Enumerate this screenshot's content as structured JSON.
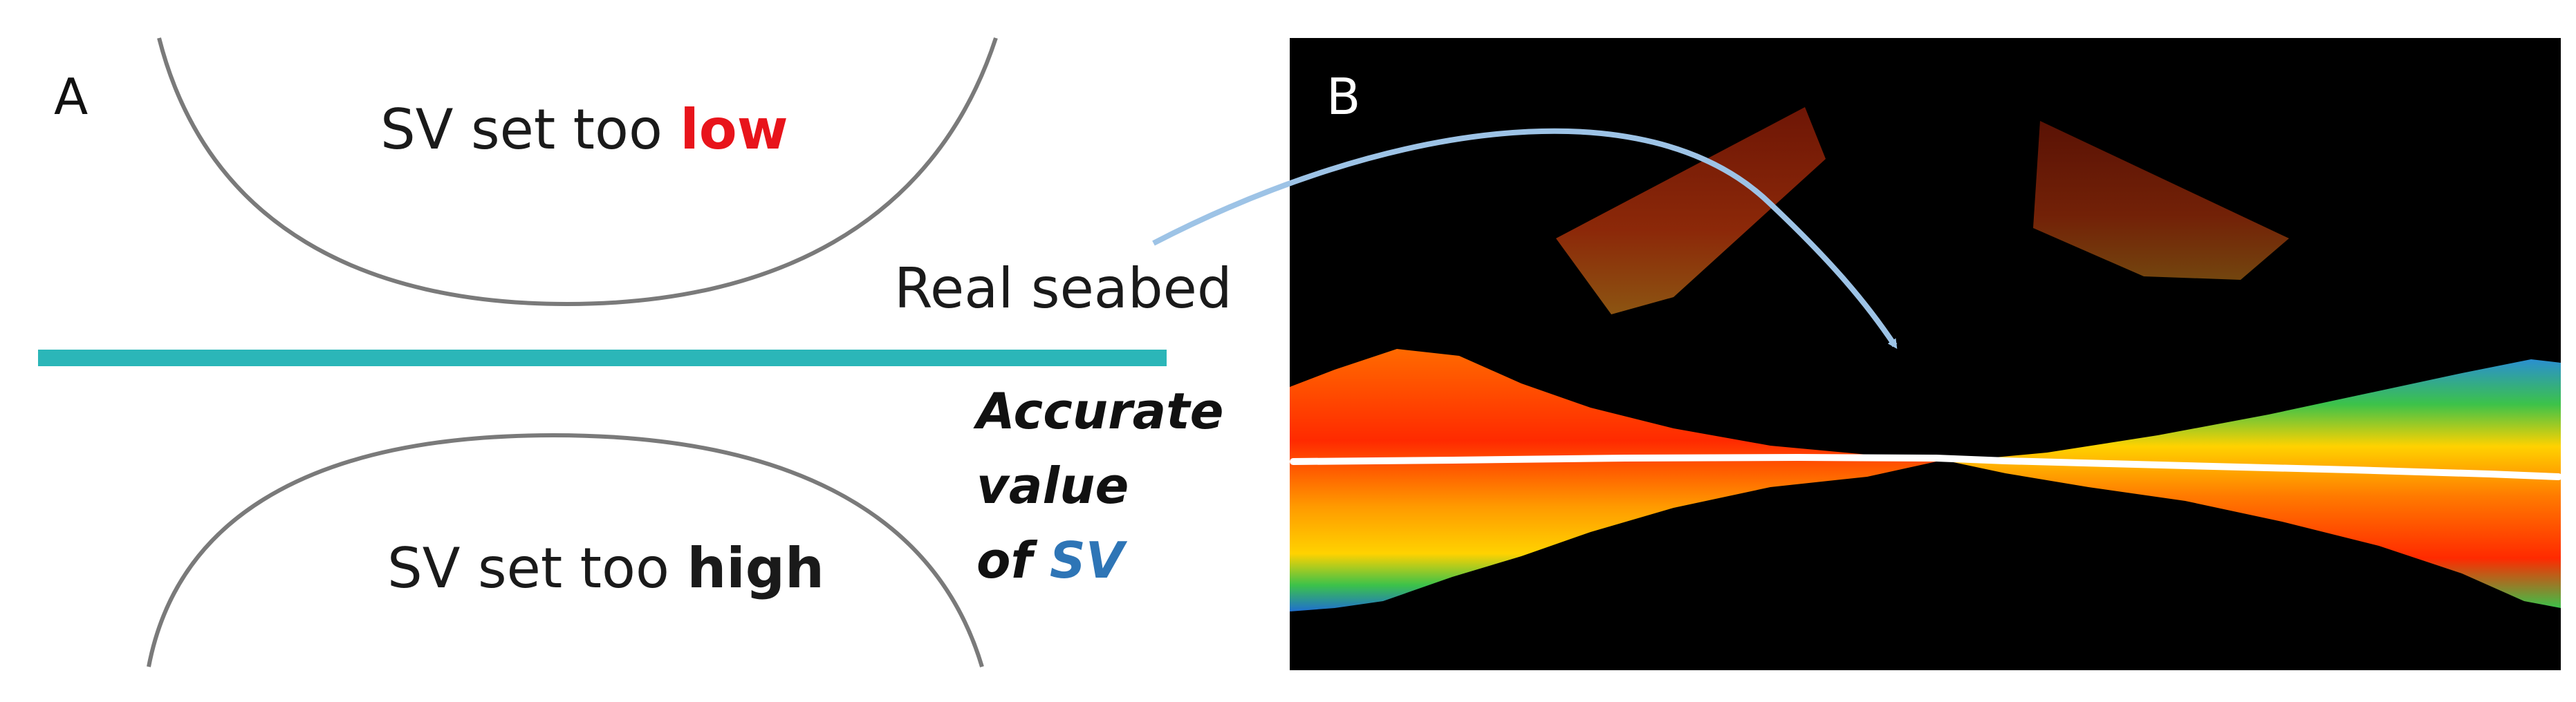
{
  "panel_a": {
    "letter": "A",
    "top_label": {
      "prefix": "SV set too ",
      "emphasis": "low",
      "emphasis_color": "#e8141b"
    },
    "bottom_label": {
      "prefix": "SV set too ",
      "emphasis": "high"
    },
    "accurate_label": {
      "line1": "Accurate",
      "line2": "value",
      "line3_prefix": "of ",
      "line3_sv": "SV",
      "sv_color": "#2e75b6"
    },
    "seabed_line_color": "#2bb6b8",
    "curve_color": "#7a7a7a"
  },
  "callout": {
    "text": "Real seabed",
    "arrow_color": "#9dc3e6"
  },
  "panel_b": {
    "letter": "B",
    "background_color": "#000000",
    "seabed_trace_color": "#ffffff",
    "swath_colors": [
      "#ff2a00",
      "#ff7a00",
      "#ffd200",
      "#3cc24a",
      "#1f8fff"
    ]
  }
}
